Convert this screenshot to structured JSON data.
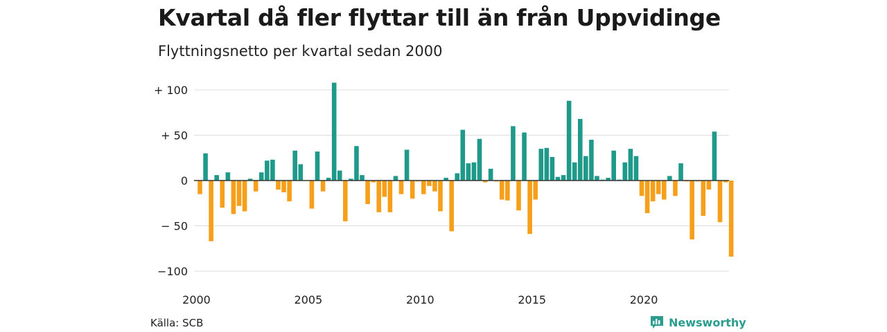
{
  "title": "Kvartal då fler flyttar till än från Uppvidinge",
  "subtitle": "Flyttningsnetto per kvartal sedan 2000",
  "source": "Källa: SCB",
  "brand": "Newsworthy",
  "brand_icon": "newsworthy-logo-icon",
  "colors": {
    "positive": "#1f9a8a",
    "negative": "#f59f1b",
    "grid": "#dddddd",
    "axis": "#333333"
  },
  "chart_data": {
    "type": "bar",
    "title": "Kvartal då fler flyttar till än från Uppvidinge",
    "subtitle": "Flyttningsnetto per kvartal sedan 2000",
    "xlabel": "",
    "ylabel": "",
    "ylim": [
      -100,
      110
    ],
    "y_ticks": [
      {
        "value": 100,
        "label": "+ 100"
      },
      {
        "value": 50,
        "label": "+  50"
      },
      {
        "value": 0,
        "label": "0"
      },
      {
        "value": -50,
        "label": "− 50"
      },
      {
        "value": -100,
        "label": "−100"
      }
    ],
    "x_ticks": [
      "2000",
      "2005",
      "2010",
      "2015",
      "2020"
    ],
    "grid": true,
    "start": "2000 Q1",
    "categories": [
      "2000 Q1",
      "2000 Q2",
      "2000 Q3",
      "2000 Q4",
      "2001 Q1",
      "2001 Q2",
      "2001 Q3",
      "2001 Q4",
      "2002 Q1",
      "2002 Q2",
      "2002 Q3",
      "2002 Q4",
      "2003 Q1",
      "2003 Q2",
      "2003 Q3",
      "2003 Q4",
      "2004 Q1",
      "2004 Q2",
      "2004 Q3",
      "2004 Q4",
      "2005 Q1",
      "2005 Q2",
      "2005 Q3",
      "2005 Q4",
      "2006 Q1",
      "2006 Q2",
      "2006 Q3",
      "2006 Q4",
      "2007 Q1",
      "2007 Q2",
      "2007 Q3",
      "2007 Q4",
      "2008 Q1",
      "2008 Q2",
      "2008 Q3",
      "2008 Q4",
      "2009 Q1",
      "2009 Q2",
      "2009 Q3",
      "2009 Q4",
      "2010 Q1",
      "2010 Q2",
      "2010 Q3",
      "2010 Q4",
      "2011 Q1",
      "2011 Q2",
      "2011 Q3",
      "2011 Q4",
      "2012 Q1",
      "2012 Q2",
      "2012 Q3",
      "2012 Q4",
      "2013 Q1",
      "2013 Q2",
      "2013 Q3",
      "2013 Q4",
      "2014 Q1",
      "2014 Q2",
      "2014 Q3",
      "2014 Q4",
      "2015 Q1",
      "2015 Q2",
      "2015 Q3",
      "2015 Q4",
      "2016 Q1",
      "2016 Q2",
      "2016 Q3",
      "2016 Q4",
      "2017 Q1",
      "2017 Q2",
      "2017 Q3",
      "2017 Q4",
      "2018 Q1",
      "2018 Q2",
      "2018 Q3",
      "2018 Q4",
      "2019 Q1",
      "2019 Q2",
      "2019 Q3",
      "2019 Q4",
      "2020 Q1",
      "2020 Q2",
      "2020 Q3",
      "2020 Q4",
      "2021 Q1",
      "2021 Q2",
      "2021 Q3",
      "2021 Q4",
      "2022 Q1",
      "2022 Q2",
      "2022 Q3",
      "2022 Q4",
      "2023 Q1",
      "2023 Q2",
      "2023 Q3",
      "2023 Q4"
    ],
    "values": [
      -15,
      30,
      -67,
      6,
      -30,
      9,
      -37,
      -28,
      -34,
      2,
      -12,
      9,
      22,
      23,
      -10,
      -13,
      -23,
      33,
      18,
      0,
      -31,
      32,
      -12,
      3,
      108,
      11,
      -45,
      2,
      38,
      6,
      -26,
      -2,
      -35,
      -18,
      -35,
      5,
      -15,
      34,
      -20,
      -1,
      -15,
      -6,
      -12,
      -34,
      3,
      -56,
      8,
      56,
      19,
      20,
      46,
      -2,
      13,
      -1,
      -21,
      -22,
      60,
      -33,
      53,
      -59,
      -21,
      35,
      36,
      26,
      4,
      6,
      88,
      20,
      68,
      27,
      45,
      5,
      1,
      3,
      33,
      1,
      20,
      35,
      27,
      -17,
      -36,
      -23,
      -15,
      -21,
      5,
      -17,
      19,
      -1,
      -65,
      -1,
      -39,
      -10,
      54,
      -46,
      -2,
      -84
    ]
  }
}
